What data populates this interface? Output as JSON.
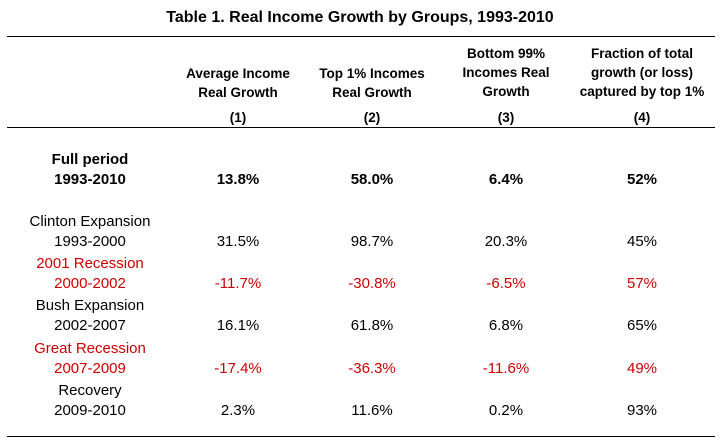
{
  "title": "Table 1. Real Income Growth by Groups, 1993-2010",
  "colors": {
    "recession": "#cc0000",
    "normal": "#000000"
  },
  "columns": [
    {
      "header_line1": "Average Income",
      "header_line2": "Real Growth",
      "header_line3": "",
      "number": "(1)"
    },
    {
      "header_line1": "Top 1% Incomes",
      "header_line2": "Real Growth",
      "header_line3": "",
      "number": "(2)"
    },
    {
      "header_line1": "Bottom 99%",
      "header_line2": "Incomes Real",
      "header_line3": "Growth",
      "number": "(3)"
    },
    {
      "header_line1": "Fraction of total",
      "header_line2": "growth (or loss)",
      "header_line3": "captured by top 1%",
      "number": "(4)"
    }
  ],
  "rows": [
    {
      "label": "Full period",
      "years": "1993-2010",
      "values": [
        "13.8%",
        "58.0%",
        "6.4%",
        "52%"
      ],
      "style": "bold"
    },
    {
      "label": "Clinton Expansion",
      "years": "1993-2000",
      "values": [
        "31.5%",
        "98.7%",
        "20.3%",
        "45%"
      ],
      "style": "normal"
    },
    {
      "label": "2001 Recession",
      "years": "2000-2002",
      "values": [
        "-11.7%",
        "-30.8%",
        "-6.5%",
        "57%"
      ],
      "style": "recession"
    },
    {
      "label": "Bush Expansion",
      "years": "2002-2007",
      "values": [
        "16.1%",
        "61.8%",
        "6.8%",
        "65%"
      ],
      "style": "normal"
    },
    {
      "label": "Great Recession",
      "years": "2007-2009",
      "values": [
        "-17.4%",
        "-36.3%",
        "-11.6%",
        "49%"
      ],
      "style": "recession"
    },
    {
      "label": "Recovery",
      "years": "2009-2010",
      "values": [
        "2.3%",
        "11.6%",
        "0.2%",
        "93%"
      ],
      "style": "normal"
    }
  ]
}
